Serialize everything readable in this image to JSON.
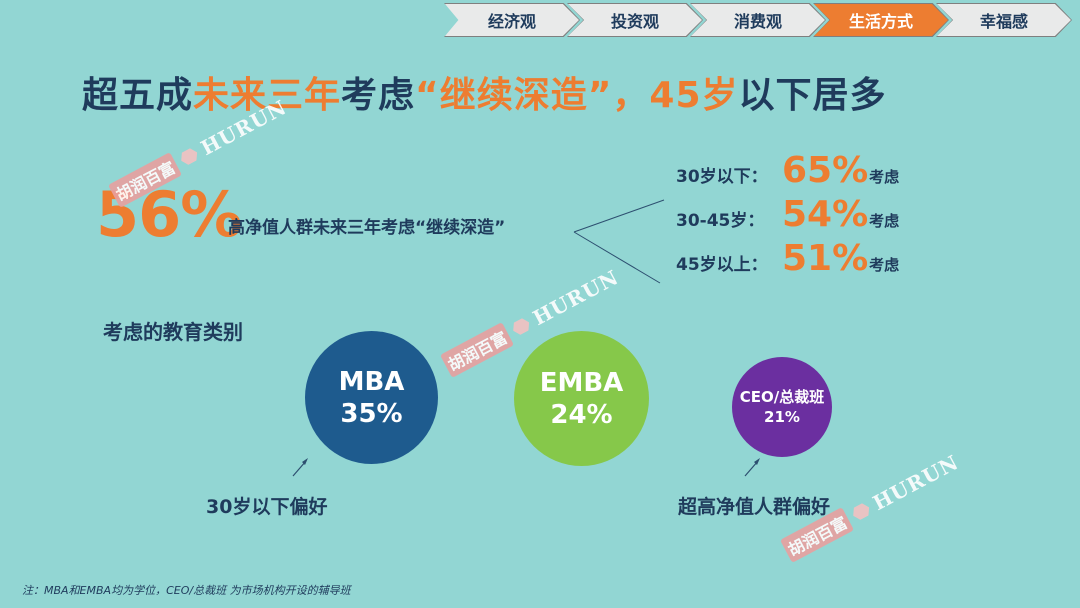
{
  "nav": {
    "items": [
      "经济观",
      "投资观",
      "消费观",
      "生活方式",
      "幸福感"
    ],
    "active_index": 3
  },
  "headline": {
    "part1": "超五成",
    "part2": "未来三年",
    "part3": "考虑",
    "part4": "“继续深造”",
    "part5": "，",
    "part6": "45岁",
    "part7": "以下居多"
  },
  "summary": {
    "percent": "56%",
    "label": "高净值人群未来三年考虑“继续深造”"
  },
  "age_breakdown": [
    {
      "label": "30岁以下：",
      "percent": "65%",
      "suffix": "考虑"
    },
    {
      "label": "30-45岁：",
      "percent": "54%",
      "suffix": "考虑"
    },
    {
      "label": "45岁以上：",
      "percent": "51%",
      "suffix": "考虑"
    }
  ],
  "education": {
    "title": "考虑的教育类别",
    "items": [
      {
        "name": "MBA",
        "value": "35%",
        "color": "#1e5b8e"
      },
      {
        "name": "EMBA",
        "value": "24%",
        "color": "#86c84a"
      },
      {
        "name": "CEO/总裁班",
        "value": "21%",
        "color": "#6b2fa0"
      }
    ],
    "mba_preference": "30岁以下偏好",
    "ceo_preference": "超高净值人群偏好"
  },
  "watermark": {
    "cn": "胡润百富",
    "en": "HURUN"
  },
  "footnote": "注：MBA和EMBA均为学位，CEO/总裁班 为市场机构开设的辅导班",
  "colors": {
    "background": "#92d6d3",
    "accent": "#ed7d31",
    "text": "#1f3b5c"
  }
}
